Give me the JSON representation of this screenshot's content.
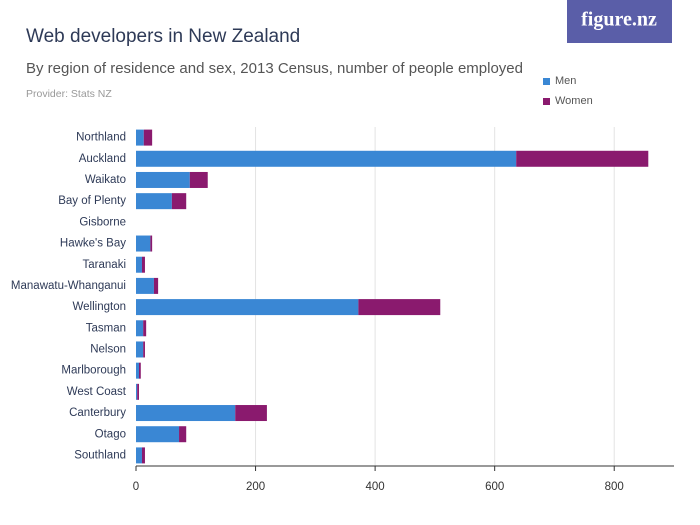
{
  "chart_data": {
    "type": "stacked-bar-horizontal",
    "title": "Web developers in New Zealand",
    "subtitle": "By region of residence and sex, 2013 Census, number of people employed",
    "source": "Provider: Stats NZ",
    "logo": "figure.nz",
    "categories": [
      "Northland",
      "Auckland",
      "Waikato",
      "Bay of Plenty",
      "Gisborne",
      "Hawke's Bay",
      "Taranaki",
      "Manawatu-Whanganui",
      "Wellington",
      "Tasman",
      "Nelson",
      "Marlborough",
      "West Coast",
      "Canterbury",
      "Otago",
      "Southland"
    ],
    "series": [
      {
        "name": "Men",
        "color": "#3a87d4",
        "values": [
          13,
          636,
          90,
          60,
          0,
          24,
          10,
          30,
          372,
          12,
          12,
          5,
          2,
          166,
          72,
          10
        ]
      },
      {
        "name": "Women",
        "color": "#8a1a6e",
        "values": [
          14,
          221,
          30,
          24,
          0,
          3,
          5,
          7,
          137,
          5,
          3,
          3,
          3,
          53,
          12,
          5
        ]
      }
    ],
    "xlim": [
      0,
      900
    ],
    "xticks": [
      0,
      200,
      400,
      600,
      800
    ],
    "grid": true,
    "legend": "top-right"
  }
}
